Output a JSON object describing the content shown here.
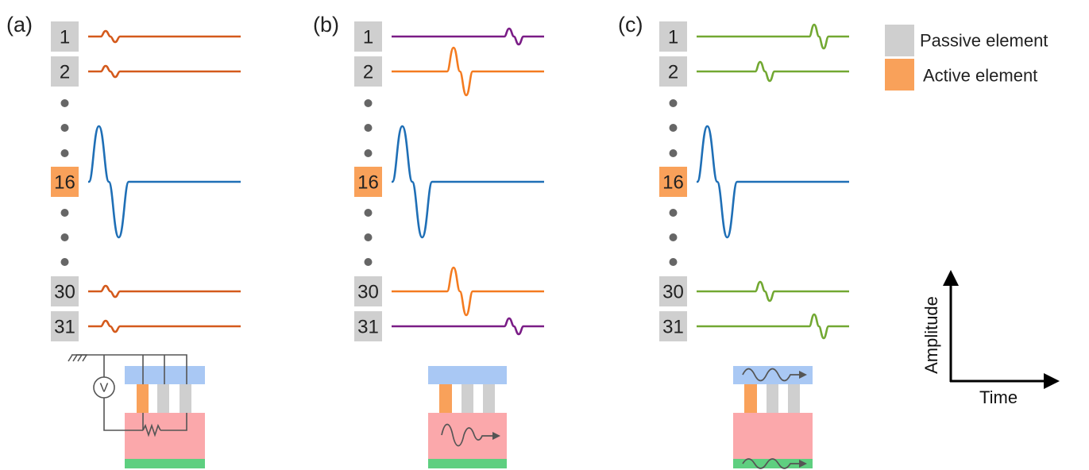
{
  "panels": [
    {
      "label": "(a)",
      "element_labels": [
        "1",
        "2",
        "16",
        "30",
        "31"
      ],
      "passive_trace_color": "#d45a1c",
      "active_trace_color": "#1f6fb6",
      "schematic": "circuit with voltage source, ground and resistor",
      "schematic_icons": [
        "ground-icon",
        "voltage-source-icon",
        "resistor-icon"
      ],
      "schematic_text": {
        "voltmeter": "V"
      }
    },
    {
      "label": "(b)",
      "element_labels": [
        "1",
        "2",
        "16",
        "30",
        "31"
      ],
      "near_trace_color": "#f47b20",
      "far_trace_color": "#7a1c86",
      "active_trace_color": "#1f6fb6",
      "schematic": "wave propagating in substrate",
      "schematic_icons": [
        "wave-arrow-icon"
      ]
    },
    {
      "label": "(c)",
      "element_labels": [
        "1",
        "2",
        "16",
        "30",
        "31"
      ],
      "passive_trace_color": "#72a832",
      "active_trace_color": "#1f6fb6",
      "schematic": "waves propagating in top and bottom layers",
      "schematic_icons": [
        "wave-arrow-icon",
        "wave-arrow-icon"
      ]
    }
  ],
  "legend": {
    "passive": {
      "label": "Passive element",
      "color": "#cfcfcf"
    },
    "active": {
      "label": "Active element",
      "color": "#f9a15a"
    }
  },
  "axes": {
    "y_label": "Amplitude",
    "x_label": "Time"
  },
  "colors": {
    "passive_element": "#cfcfcf",
    "active_element": "#f9a15a",
    "top_layer": "#a9c8f4",
    "substrate": "#fba8ab",
    "bottom_layer": "#5ecf80",
    "dots": "#666666",
    "wiring": "#555555"
  }
}
